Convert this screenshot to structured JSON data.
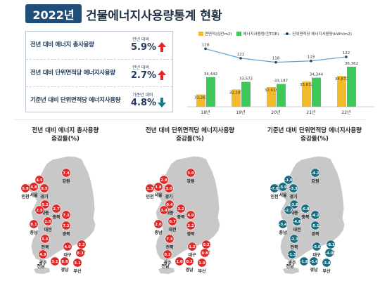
{
  "header": {
    "year": "2022년",
    "title": "건물에너지사용량통계 현황"
  },
  "colors": {
    "navy": "#1f4e79",
    "up": "#e02828",
    "down": "#1b7a8c",
    "area_bar": "#f2bb2b",
    "energy_bar": "#3ec85a",
    "intensity_line": "#5aa4d6",
    "map_land": "#c8c8c8",
    "bubble_up": "#e02828",
    "bubble_down": "#1b6e82"
  },
  "stats": [
    {
      "label": "전년 대비 에너지 총사용량",
      "sub": "전년 대비",
      "value": "5.9%",
      "direction": "up",
      "icon": "up-arrow-icon"
    },
    {
      "label": "전년 대비 단위면적당 에너지사용량",
      "sub": "전년 대비",
      "value": "2.7%",
      "direction": "up",
      "icon": "up-arrow-icon"
    },
    {
      "label": "기준년 대비 단위면적당 에너지사용량",
      "sub": "기준년 대비",
      "value": "4.8%",
      "direction": "down",
      "icon": "down-arrow-icon"
    }
  ],
  "chart_data": {
    "type": "bar",
    "categories": [
      "18년",
      "19년",
      "20년",
      "21년",
      "22년"
    ],
    "series": [
      {
        "name": "연면적(십만m2)",
        "kind": "bar",
        "values": [
          31263,
          32187,
          32619,
          33632,
          34672
        ]
      },
      {
        "name": "에너지사용량(천TOE)",
        "kind": "bar",
        "values": [
          34442,
          33572,
          33187,
          34344,
          36362
        ]
      },
      {
        "name": "단위면적당 에너지사용량(kWh/m2)",
        "kind": "line",
        "values": [
          128,
          121,
          118,
          119,
          122
        ]
      }
    ],
    "value_labels": {
      "area": [
        "31,263",
        "32,187",
        "32,619",
        "33,632",
        "34,672"
      ],
      "energy": [
        "34,442",
        "33,572",
        "33,187",
        "34,344",
        "36,362"
      ],
      "intensity": [
        "128",
        "121",
        "118",
        "119",
        "122"
      ]
    },
    "legend_position": "top",
    "grid": false
  },
  "maps": [
    {
      "title_line1": "전년 대비 에너지 총사용량",
      "title_line2": "증감률(%)",
      "direction": "up",
      "bubbles": [
        {
          "region": "인천",
          "value": "5.9"
        },
        {
          "region": "서울",
          "value": "4.8"
        },
        {
          "region": "",
          "value": "4.5"
        },
        {
          "region": "경기",
          "value": "8.5"
        },
        {
          "region": "강원",
          "value": "7.4"
        },
        {
          "region": "세종",
          "value": "5.2"
        },
        {
          "region": "",
          "value": "2.5"
        },
        {
          "region": "충북",
          "value": "2.7"
        },
        {
          "region": "충남",
          "value": "8.1"
        },
        {
          "region": "대전",
          "value": "2.0"
        },
        {
          "region": "",
          "value": "7.2"
        },
        {
          "region": "경북",
          "value": "7.2"
        },
        {
          "region": "전북",
          "value": "5.6"
        },
        {
          "region": "대구",
          "value": "4.0"
        },
        {
          "region": "울산",
          "value": "2.2"
        },
        {
          "region": "",
          "value": "8.3"
        },
        {
          "region": "광주",
          "value": "4.9"
        },
        {
          "region": "",
          "value": "3.1"
        },
        {
          "region": "경남",
          "value": "8.9"
        },
        {
          "region": "부산",
          "value": "3.1"
        },
        {
          "region": "전남",
          "value": ""
        }
      ]
    },
    {
      "title_line1": "전년 대비 단위면적당 에너지사용량",
      "title_line2": "증감률(%)",
      "direction": "up",
      "bubbles": [
        {
          "region": "인천",
          "value": "1.3"
        },
        {
          "region": "서울",
          "value": "1.8"
        },
        {
          "region": "",
          "value": "2.9"
        },
        {
          "region": "경기",
          "value": "3.0"
        },
        {
          "region": "강원",
          "value": "3.0"
        },
        {
          "region": "세종",
          "value": "0.4"
        },
        {
          "region": "",
          "value": "3.4"
        },
        {
          "region": "충북",
          "value": "3.2"
        },
        {
          "region": "충남",
          "value": "2.0"
        },
        {
          "region": "대전",
          "value": "0.7"
        },
        {
          "region": "",
          "value": "4.0"
        },
        {
          "region": "경북",
          "value": "2.2"
        },
        {
          "region": "전북",
          "value": "7.9"
        },
        {
          "region": "대구",
          "value": "1.2"
        },
        {
          "region": "울산",
          "value": "0.2"
        },
        {
          "region": "",
          "value": "0.8"
        },
        {
          "region": "광주",
          "value": "0.2"
        },
        {
          "region": "",
          "value": "1.0"
        },
        {
          "region": "경남",
          "value": "0.2"
        },
        {
          "region": "부산",
          "value": "1.0"
        },
        {
          "region": "전남",
          "value": ""
        }
      ]
    },
    {
      "title_line1": "기준년 대비 단위면적당 에너지사용량",
      "title_line2": "증감률(%)",
      "direction": "down",
      "bubbles": [
        {
          "region": "인천",
          "value": "-7.8"
        },
        {
          "region": "서울",
          "value": "-5.9"
        },
        {
          "region": "",
          "value": "-1.0"
        },
        {
          "region": "경기",
          "value": "-3.3"
        },
        {
          "region": "강원",
          "value": "-4.2"
        },
        {
          "region": "세종",
          "value": "-3.8"
        },
        {
          "region": "",
          "value": "-2.2"
        },
        {
          "region": "충북",
          "value": "-6.8"
        },
        {
          "region": "충남",
          "value": "-3.4"
        },
        {
          "region": "대전",
          "value": "-4.8"
        },
        {
          "region": "",
          "value": "-4.2"
        },
        {
          "region": "경북",
          "value": "-5.1"
        },
        {
          "region": "전북",
          "value": "-2.3"
        },
        {
          "region": "대구",
          "value": "-5.6"
        },
        {
          "region": "울산",
          "value": "-8.1"
        },
        {
          "region": "",
          "value": "-4.0"
        },
        {
          "region": "광주",
          "value": "-1.3"
        },
        {
          "region": "",
          "value": "-1.8"
        },
        {
          "region": "경남",
          "value": "-5.4"
        },
        {
          "region": "부산",
          "value": "-3.8"
        },
        {
          "region": "전남",
          "value": ""
        }
      ]
    }
  ]
}
